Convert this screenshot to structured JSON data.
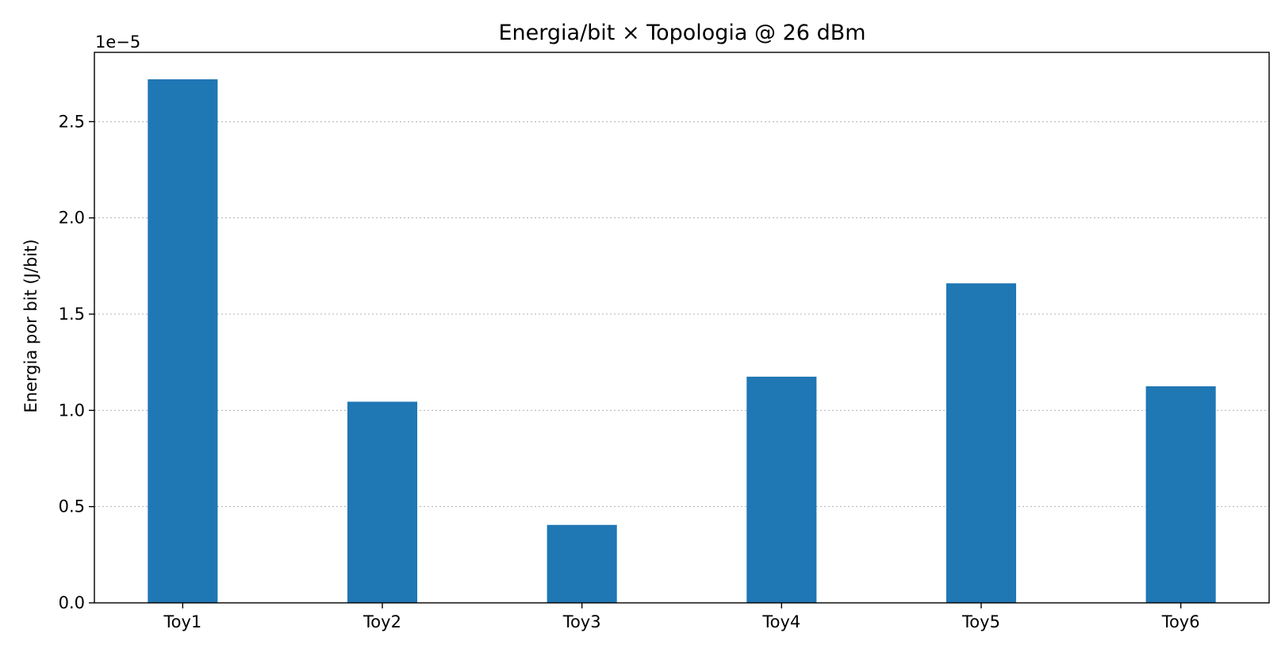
{
  "chart_data": {
    "type": "bar",
    "title": "Energia/bit × Topologia @ 26 dBm",
    "xlabel": "",
    "ylabel": "Energia por bit (J/bit)",
    "y_offset_label": "1e−5",
    "categories": [
      "Toy1",
      "Toy2",
      "Toy3",
      "Toy4",
      "Toy5",
      "Toy6"
    ],
    "values": [
      2.72e-05,
      1.045e-05,
      4.05e-06,
      1.175e-05,
      1.66e-05,
      1.125e-05
    ],
    "ylim": [
      0,
      2.86e-05
    ],
    "yticks": [
      0,
      5e-06,
      1e-05,
      1.5e-05,
      2e-05,
      2.5e-05
    ],
    "ytick_labels": [
      "0.0",
      "0.5",
      "1.0",
      "1.5",
      "2.0",
      "2.5"
    ],
    "grid": {
      "y": true,
      "x": false
    },
    "legend": null,
    "colors": {
      "bar": "#1f77b4"
    }
  }
}
